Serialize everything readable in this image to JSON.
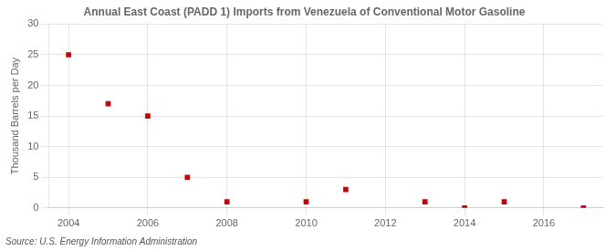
{
  "chart_data": {
    "type": "scatter",
    "title": "Annual East Coast (PADD 1) Imports from Venezuela of Conventional Motor Gasoline",
    "ylabel": "Thousand Barrels per Day",
    "annotations": [
      "Source: U.S. Energy Information Administration"
    ],
    "x": [
      2004,
      2005,
      2006,
      2007,
      2008,
      2010,
      2011,
      2013,
      2014,
      2015,
      2017
    ],
    "values": [
      25.0,
      17.0,
      15.0,
      5.0,
      1.0,
      1.0,
      3.0,
      1.0,
      0.0,
      1.0,
      0.0
    ],
    "color": "#cc0000",
    "marker": "square",
    "xlim": [
      2003.5,
      2017.5
    ],
    "ylim": [
      0,
      30
    ],
    "xticks": [
      2004,
      2006,
      2008,
      2010,
      2012,
      2014,
      2016
    ],
    "yticks": [
      0,
      5,
      10,
      15,
      20,
      25,
      30
    ],
    "grid": true
  }
}
